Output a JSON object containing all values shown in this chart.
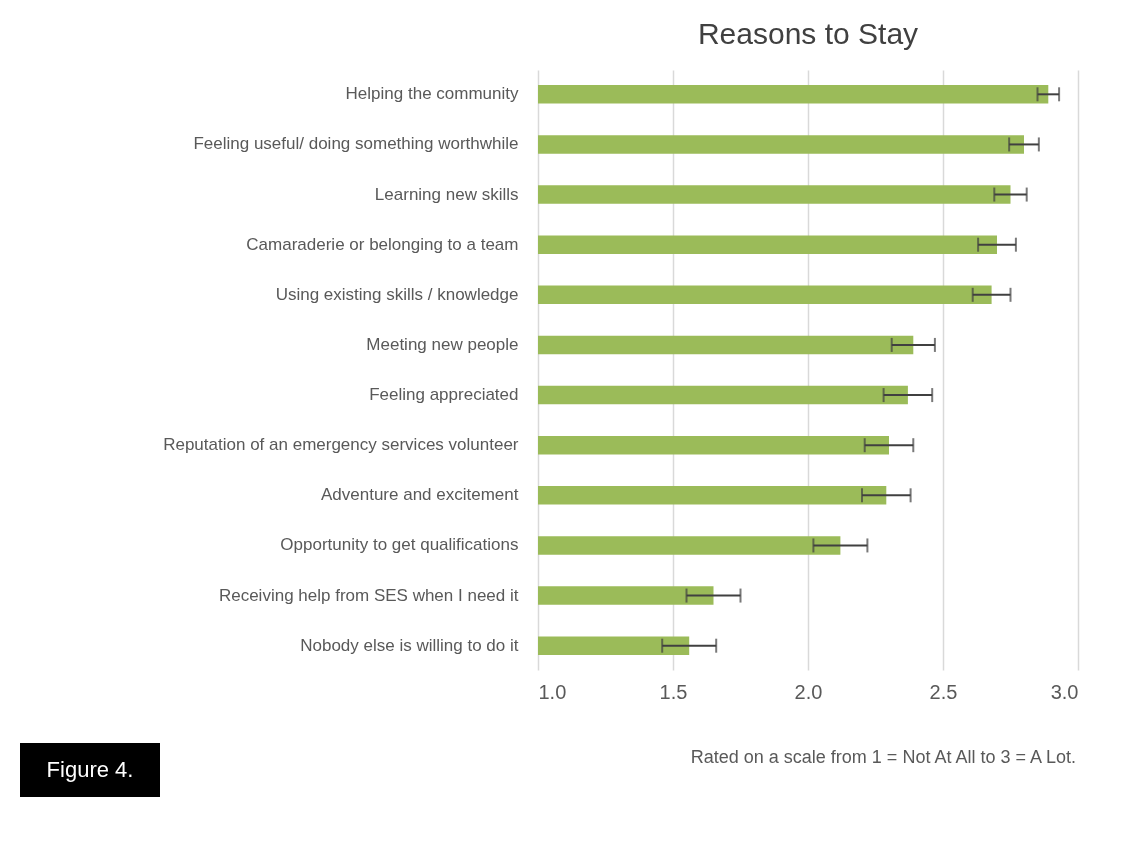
{
  "chart_data": {
    "type": "bar",
    "orientation": "horizontal",
    "title": "Reasons to Stay",
    "categories": [
      "Helping the community",
      "Feeling useful/ doing something worthwhile",
      "Learning new skills",
      "Camaraderie or belonging to a team",
      "Using existing skills / knowledge",
      "Meeting new people",
      "Feeling appreciated",
      "Reputation of an emergency services volunteer",
      "Adventure and excitement",
      "Opportunity to get qualifications",
      "Receiving help from SES when I need it",
      "Nobody else is willing to do it"
    ],
    "values": [
      2.89,
      2.8,
      2.75,
      2.7,
      2.68,
      2.39,
      2.37,
      2.3,
      2.29,
      2.12,
      1.65,
      1.56
    ],
    "errors": [
      0.04,
      0.055,
      0.06,
      0.07,
      0.07,
      0.08,
      0.09,
      0.09,
      0.09,
      0.1,
      0.1,
      0.1
    ],
    "color": "#9bbb59",
    "xlim": [
      1.0,
      3.0
    ],
    "xticks": [
      {
        "value": 1.0,
        "label": "1.0"
      },
      {
        "value": 1.5,
        "label": "1.5"
      },
      {
        "value": 2.0,
        "label": "2.0"
      },
      {
        "value": 2.5,
        "label": "2.5"
      },
      {
        "value": 3.0,
        "label": "3.0"
      }
    ],
    "grid": "x",
    "annotations": [
      "Figure 4.",
      "Rated on a scale from 1 = Not At All to 3 = A Lot."
    ]
  }
}
